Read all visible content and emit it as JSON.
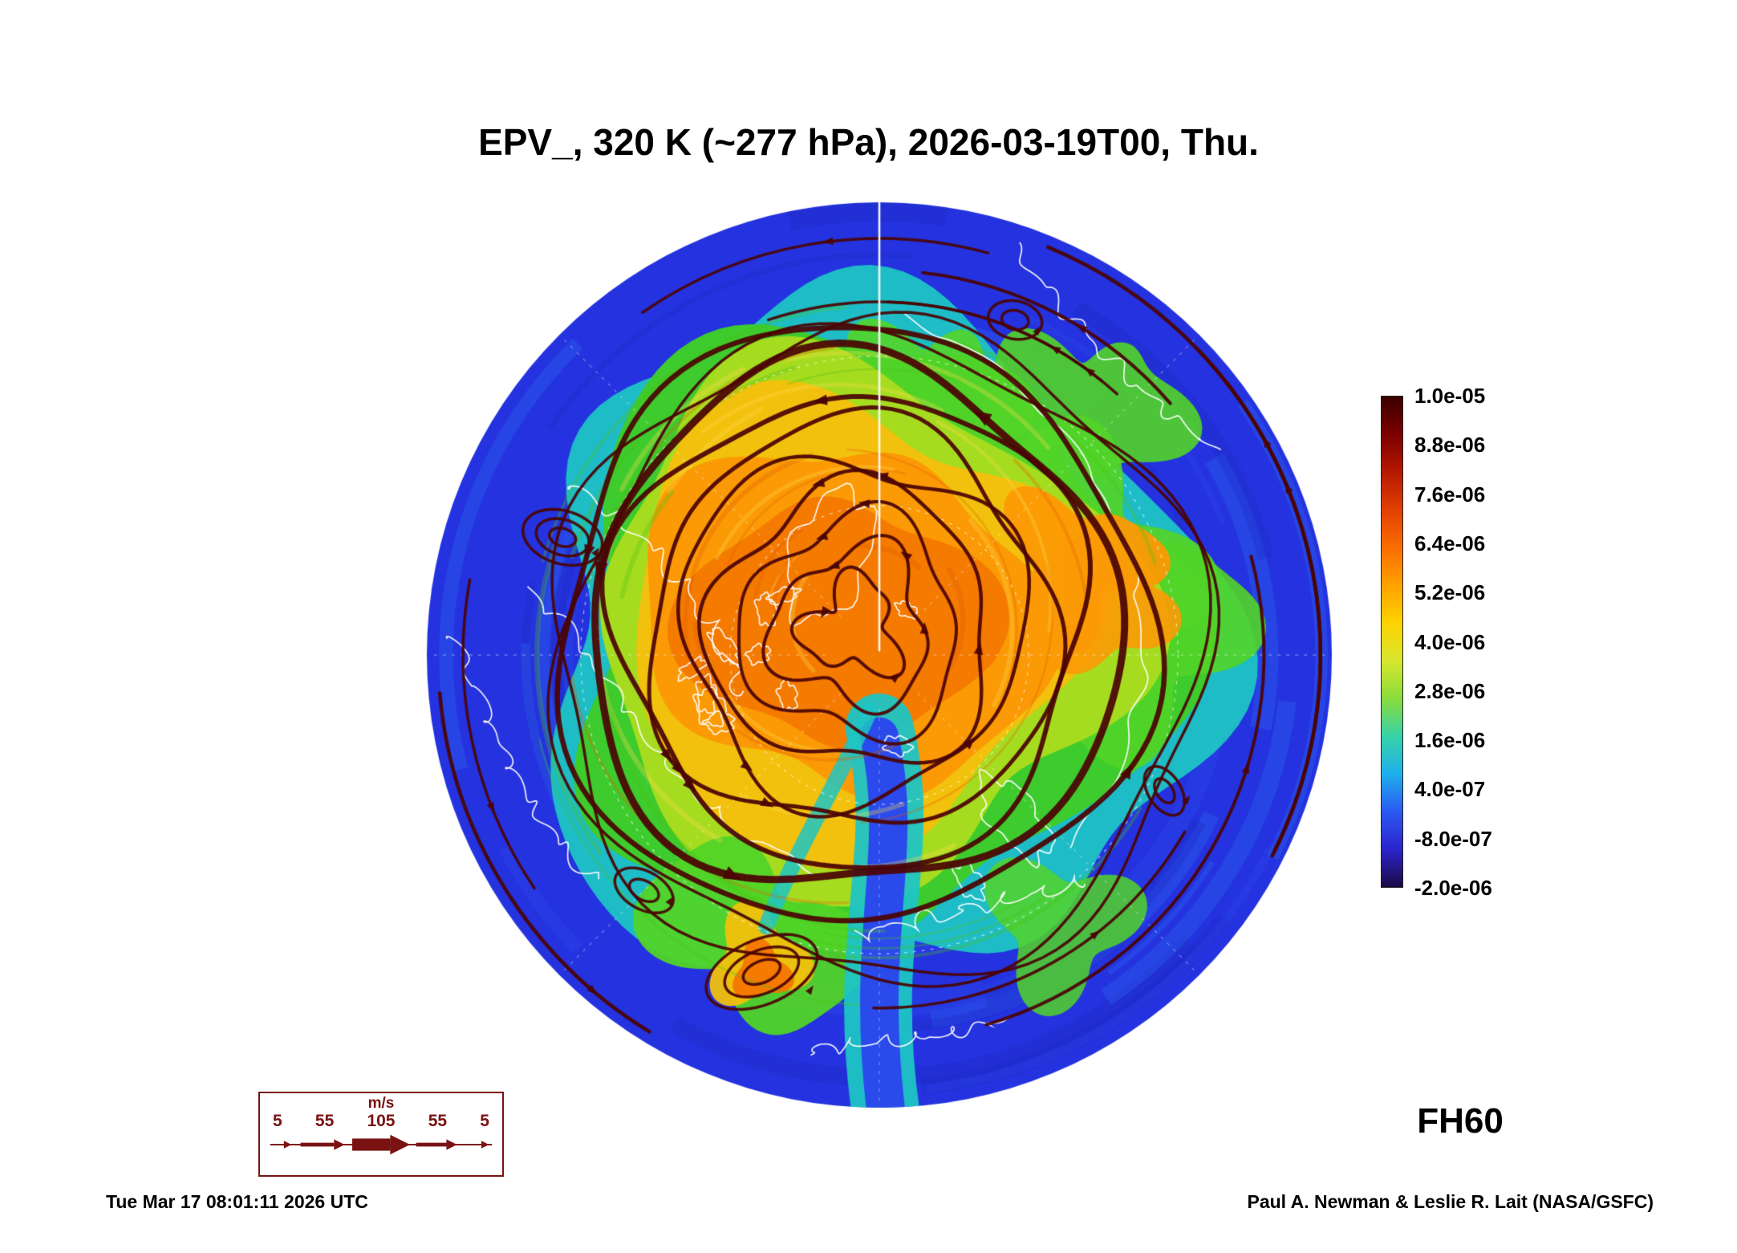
{
  "title": "EPV_, 320 K (~277 hPa), 2026-03-19T00, Thu.",
  "forecast_label": "FH60",
  "footer": {
    "timestamp": "Tue Mar 17 08:01:11 2026 UTC",
    "credit": "Paul A. Newman & Leslie R. Lait (NASA/GSFC)"
  },
  "colorbar": {
    "tick_labels": [
      "1.0e-05",
      "8.8e-06",
      "7.6e-06",
      "6.4e-06",
      "5.2e-06",
      "4.0e-06",
      "2.8e-06",
      "1.6e-06",
      "4.0e-07",
      "-8.0e-07",
      "-2.0e-06"
    ],
    "stops_top_to_bottom": [
      "#3a0000",
      "#7c0000",
      "#b61800",
      "#e14000",
      "#fb6c00",
      "#ffa100",
      "#ffd300",
      "#d8e62e",
      "#8adc3c",
      "#38d2a8",
      "#1fb0ec",
      "#2b59f2",
      "#2b24cc",
      "#1b0a44"
    ]
  },
  "wind_legend": {
    "units_label": "m/s",
    "speed_labels": [
      "5",
      "55",
      "105",
      "55",
      "5"
    ]
  },
  "colors": {
    "base_blue": "#2433df",
    "blue2": "#2a4aec",
    "blue3": "#1c28c0",
    "cyan": "#2f6ff2",
    "teal": "#1fc4c4",
    "green": "#3ecb2d",
    "green2": "#52d428",
    "yellowgreen": "#a6dc1f",
    "yellow": "#f2c10d",
    "orange": "#fb9a05",
    "orange2": "#f47a00",
    "fil_orange": "#e05e00",
    "fil_yellow": "#ffdf4d",
    "fil_green": "#49c414",
    "streamline": "#4a0404",
    "coast": "#ffffff",
    "legend_red": "#7a1212"
  },
  "chart_data": {
    "type": "heatmap",
    "title": "EPV_, 320 K (~277 hPa), 2026-03-19T00, Thu.",
    "field": "EPV",
    "level": "320 K (~277 hPa)",
    "valid_time": "2026-03-19T00, Thu.",
    "forecast_hour_label": "FH60",
    "projection": "north polar stereographic circle",
    "colorbar_ticks": [
      1e-05,
      8.8e-06,
      7.6e-06,
      6.4e-06,
      5.2e-06,
      4e-06,
      2.8e-06,
      1.6e-06,
      4e-07,
      -8e-07,
      -2e-06
    ],
    "colorbar_tick_labels": [
      "1.0e-05",
      "8.8e-06",
      "7.6e-06",
      "6.4e-06",
      "5.2e-06",
      "4.0e-06",
      "2.8e-06",
      "1.6e-06",
      "4.0e-07",
      "-8.0e-07",
      "-2.0e-06"
    ],
    "wind_legend_speeds_ms": [
      5,
      55,
      105,
      55,
      5
    ],
    "wind_legend_units": "m/s",
    "overlays": [
      "wind streamlines (dark red, thickness ~ speed)",
      "coastlines (white)",
      "dashed lat/lon graticule (white)"
    ],
    "legend_position": "right",
    "notes": "High EPV (orange/yellow) polar vortex region offset slightly left/above pole; low EPV (blue) annulus at outer latitudes; cyan/green transition ring; blue tongue intruding from bottom; small cutoff orange eddy at lower left"
  }
}
